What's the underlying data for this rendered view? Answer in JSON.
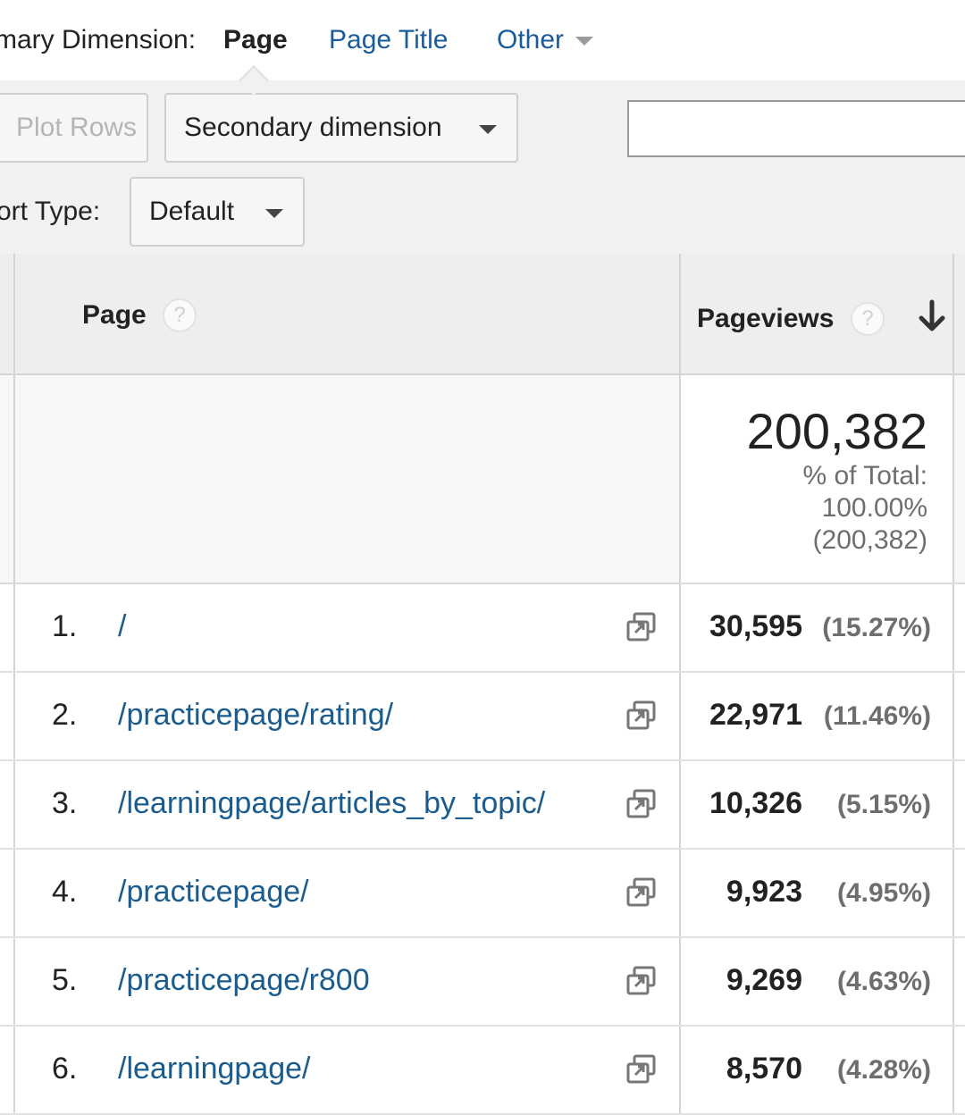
{
  "dimension_bar": {
    "label": "mary Dimension:",
    "active": "Page",
    "links": [
      "Page Title",
      "Other"
    ]
  },
  "controls": {
    "plot_rows": "Plot Rows",
    "secondary_dimension": "Secondary dimension",
    "search_value": "",
    "sort_type_label": "ort Type:",
    "sort_type_value": "Default"
  },
  "table": {
    "headers": {
      "page": "Page",
      "pageviews": "Pageviews"
    },
    "help_glyph": "?",
    "total": {
      "value": "200,382",
      "pct_label": "% of Total:",
      "pct_value": "100.00%",
      "pct_abs": "(200,382)"
    },
    "rows": [
      {
        "num": "1.",
        "page": "/",
        "pageviews": "30,595",
        "pct": "(15.27%)"
      },
      {
        "num": "2.",
        "page": "/practicepage/rating/",
        "pageviews": "22,971",
        "pct": "(11.46%)"
      },
      {
        "num": "3.",
        "page": "/learningpage/articles_by_topic/",
        "pageviews": "10,326",
        "pct": "(5.15%)"
      },
      {
        "num": "4.",
        "page": "/practicepage/",
        "pageviews": "9,923",
        "pct": "(4.95%)"
      },
      {
        "num": "5.",
        "page": "/practicepage/r800",
        "pageviews": "9,269",
        "pct": "(4.63%)"
      },
      {
        "num": "6.",
        "page": "/learningpage/",
        "pageviews": "8,570",
        "pct": "(4.28%)"
      }
    ]
  },
  "colors": {
    "link": "#1a5c8e",
    "header_bg": "#eeeeee",
    "controls_bg": "#f1f1f1"
  },
  "icons": {
    "external": "external-link-icon",
    "sort": "sort-down-arrow-icon",
    "help": "help-icon"
  }
}
